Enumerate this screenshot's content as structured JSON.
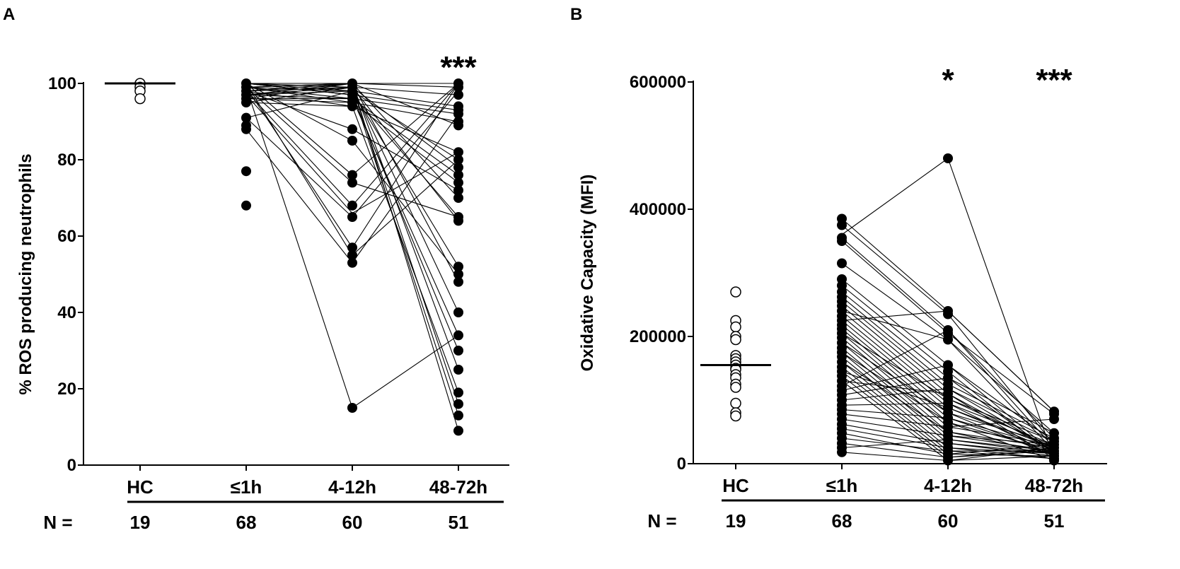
{
  "chart_data": [
    {
      "panel": "A",
      "type": "scatter",
      "ylabel": "% ROS producing neutrophils",
      "ylim": [
        0,
        100
      ],
      "yticks": [
        0,
        20,
        40,
        60,
        80,
        100
      ],
      "categories": [
        "HC",
        "≤1h",
        "4-12h",
        "48-72h"
      ],
      "n_prefix": "N =",
      "n_values": [
        "19",
        "68",
        "60",
        "51"
      ],
      "significance": [
        "",
        "",
        "",
        "***"
      ],
      "hc_median": 100,
      "hc_points": [
        100,
        99,
        98,
        96
      ],
      "points": {
        "≤1h": [
          100,
          99,
          98,
          97,
          96,
          95,
          91,
          89,
          88,
          77,
          68
        ],
        "4-12h": [
          100,
          99,
          98,
          97,
          96,
          95,
          94,
          88,
          85,
          76,
          74,
          68,
          65,
          57,
          55,
          53,
          15
        ],
        "48-72h": [
          100,
          99,
          97,
          94,
          93,
          92,
          90,
          89,
          82,
          80,
          78,
          76,
          74,
          72,
          70,
          65,
          64,
          52,
          50,
          48,
          40,
          34,
          30,
          25,
          19,
          16,
          13,
          9
        ]
      },
      "paired_lines": [
        [
          100,
          100,
          100
        ],
        [
          99,
          100,
          99
        ],
        [
          98,
          99,
          97
        ],
        [
          97,
          98,
          94
        ],
        [
          100,
          97,
          93
        ],
        [
          99,
          96,
          92
        ],
        [
          96,
          95,
          90
        ],
        [
          98,
          100,
          89
        ],
        [
          95,
          94,
          82
        ],
        [
          91,
          98,
          80
        ],
        [
          100,
          99,
          78
        ],
        [
          97,
          96,
          76
        ],
        [
          99,
          95,
          74
        ],
        [
          98,
          88,
          72
        ],
        [
          96,
          100,
          70
        ],
        [
          100,
          97,
          65
        ],
        [
          95,
          99,
          64
        ],
        [
          99,
          98,
          52
        ],
        [
          100,
          85,
          50
        ],
        [
          98,
          100,
          48
        ],
        [
          97,
          99,
          40
        ],
        [
          96,
          96,
          34
        ],
        [
          100,
          97,
          30
        ],
        [
          99,
          100,
          25
        ],
        [
          98,
          94,
          19
        ],
        [
          95,
          99,
          16
        ],
        [
          100,
          98,
          13
        ],
        [
          97,
          100,
          9
        ],
        [
          100,
          76,
          100
        ],
        [
          99,
          74,
          65
        ],
        [
          98,
          68,
          100
        ],
        [
          97,
          66,
          82
        ],
        [
          91,
          65,
          98
        ],
        [
          99,
          57,
          100
        ],
        [
          100,
          55,
          80
        ],
        [
          88,
          53,
          92
        ],
        [
          99,
          15,
          34
        ]
      ]
    },
    {
      "panel": "B",
      "type": "scatter",
      "ylabel": "Oxidative Capacity (MFI)",
      "ylim": [
        0,
        600000
      ],
      "yticks": [
        0,
        200000,
        400000,
        600000
      ],
      "categories": [
        "HC",
        "≤1h",
        "4-12h",
        "48-72h"
      ],
      "n_prefix": "N =",
      "n_values": [
        "19",
        "68",
        "60",
        "51"
      ],
      "significance": [
        "",
        "",
        "*",
        "***"
      ],
      "hc_median": 155000,
      "hc_points": [
        270000,
        225000,
        215000,
        200000,
        195000,
        170000,
        165000,
        160000,
        155000,
        150000,
        148000,
        140000,
        135000,
        125000,
        120000,
        95000,
        80000,
        75000
      ],
      "points": {
        "≤1h": [
          385000,
          375000,
          355000,
          350000,
          315000,
          290000,
          280000,
          270000,
          262000,
          255000,
          248000,
          240000,
          232000,
          225000,
          218000,
          212000,
          205000,
          198000,
          190000,
          182000,
          175000,
          168000,
          160000,
          152000,
          145000,
          138000,
          130000,
          122000,
          115000,
          108000,
          100000,
          92000,
          85000,
          78000,
          70000,
          62000,
          55000,
          48000,
          40000,
          32000,
          25000,
          18000
        ],
        "4-12h": [
          480000,
          240000,
          235000,
          210000,
          205000,
          195000,
          155000,
          145000,
          135000,
          125000,
          118000,
          110000,
          102000,
          95000,
          88000,
          80000,
          72000,
          65000,
          58000,
          50000,
          44000,
          38000,
          32000,
          25000,
          20000,
          15000,
          10000,
          5000
        ],
        "48-72h": [
          82000,
          78000,
          70000,
          48000,
          40000,
          35000,
          30000,
          25000,
          20000,
          16000,
          12000,
          8000,
          5000
        ]
      },
      "paired_lines": [
        [
          360000,
          480000,
          8000
        ],
        [
          385000,
          240000,
          82000
        ],
        [
          375000,
          235000,
          30000
        ],
        [
          355000,
          210000,
          25000
        ],
        [
          350000,
          205000,
          78000
        ],
        [
          315000,
          195000,
          20000
        ],
        [
          290000,
          155000,
          16000
        ],
        [
          280000,
          145000,
          12000
        ],
        [
          270000,
          135000,
          48000
        ],
        [
          262000,
          125000,
          40000
        ],
        [
          255000,
          118000,
          35000
        ],
        [
          248000,
          110000,
          8000
        ],
        [
          240000,
          102000,
          25000
        ],
        [
          232000,
          95000,
          30000
        ],
        [
          225000,
          88000,
          20000
        ],
        [
          218000,
          80000,
          12000
        ],
        [
          212000,
          72000,
          16000
        ],
        [
          205000,
          65000,
          5000
        ],
        [
          198000,
          58000,
          70000
        ],
        [
          190000,
          50000,
          25000
        ],
        [
          182000,
          44000,
          30000
        ],
        [
          175000,
          38000,
          20000
        ],
        [
          168000,
          32000,
          12000
        ],
        [
          160000,
          25000,
          16000
        ],
        [
          152000,
          20000,
          8000
        ],
        [
          145000,
          15000,
          30000
        ],
        [
          138000,
          10000,
          20000
        ],
        [
          130000,
          5000,
          25000
        ],
        [
          122000,
          210000,
          40000
        ],
        [
          115000,
          155000,
          35000
        ],
        [
          108000,
          135000,
          16000
        ],
        [
          100000,
          118000,
          20000
        ],
        [
          92000,
          95000,
          12000
        ],
        [
          85000,
          72000,
          25000
        ],
        [
          78000,
          58000,
          30000
        ],
        [
          70000,
          44000,
          20000
        ],
        [
          62000,
          32000,
          16000
        ],
        [
          55000,
          25000,
          8000
        ],
        [
          48000,
          15000,
          12000
        ],
        [
          40000,
          20000,
          20000
        ],
        [
          32000,
          10000,
          25000
        ],
        [
          25000,
          38000,
          16000
        ],
        [
          18000,
          5000,
          12000
        ],
        [
          240000,
          195000,
          48000
        ],
        [
          225000,
          240000,
          82000
        ],
        [
          205000,
          102000,
          35000
        ],
        [
          190000,
          80000,
          30000
        ],
        [
          175000,
          65000,
          20000
        ],
        [
          160000,
          50000,
          16000
        ],
        [
          145000,
          88000,
          25000
        ],
        [
          130000,
          110000,
          20000
        ]
      ]
    }
  ]
}
